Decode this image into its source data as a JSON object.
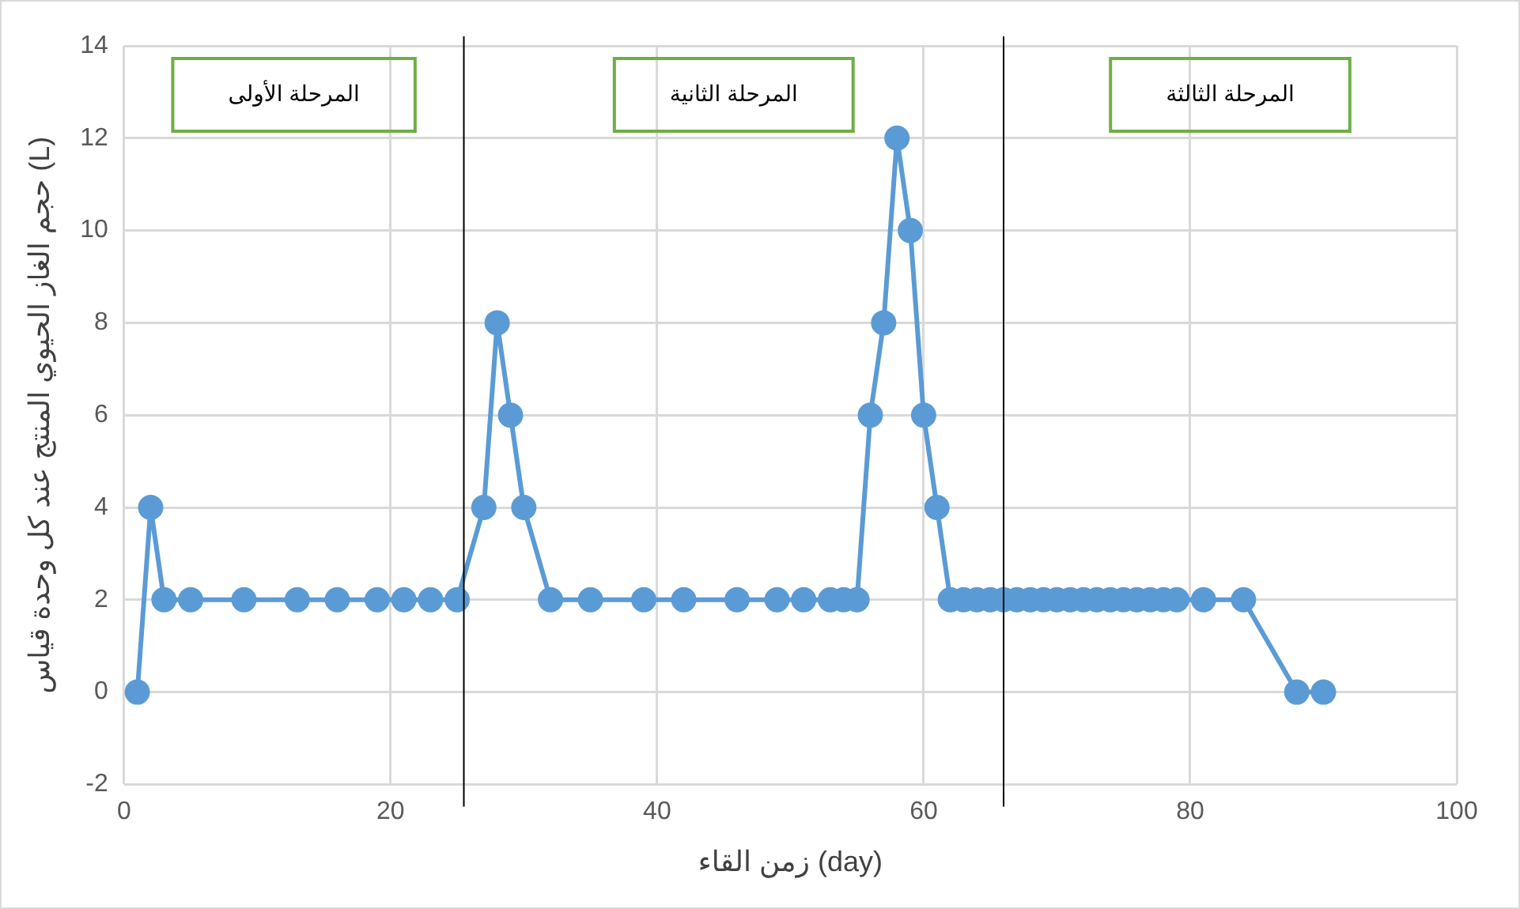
{
  "chart_data": {
    "type": "line",
    "xlabel": "زمن القاء (day)",
    "ylabel": "حجم الغاز الحيوي المنتج عند كل وحدة قياس (L)",
    "x": [
      1,
      2,
      3,
      5,
      9,
      13,
      16,
      19,
      21,
      23,
      25,
      27,
      28,
      29,
      30,
      32,
      35,
      39,
      42,
      46,
      49,
      51,
      53,
      54,
      55,
      56,
      57,
      58,
      59,
      60,
      61,
      62,
      63,
      64,
      65,
      66,
      67,
      68,
      69,
      70,
      71,
      72,
      73,
      74,
      75,
      76,
      77,
      78,
      79,
      81,
      84,
      88,
      90
    ],
    "series": [
      {
        "color": "#5b9bd5",
        "values": [
          0,
          4,
          2,
          2,
          2,
          2,
          2,
          2,
          2,
          2,
          2,
          4,
          8,
          6,
          4,
          2,
          2,
          2,
          2,
          2,
          2,
          2,
          2,
          2,
          2,
          6,
          8,
          12,
          10,
          6,
          4,
          2,
          2,
          2,
          2,
          2,
          2,
          2,
          2,
          2,
          2,
          2,
          2,
          2,
          2,
          2,
          2,
          2,
          2,
          2,
          2,
          0,
          0
        ]
      }
    ],
    "xlim": [
      0,
      100
    ],
    "xticks": [
      0,
      20,
      40,
      60,
      80,
      100
    ],
    "ylim": [
      -2,
      14
    ],
    "yticks": [
      -2,
      0,
      2,
      4,
      6,
      8,
      10,
      12,
      14
    ],
    "grid": true,
    "legend": false,
    "marker": "circle",
    "line_style": "solid",
    "ref_lines": [
      {
        "axis": "x",
        "value": 25.5,
        "color": "#000000"
      },
      {
        "axis": "x",
        "value": 66,
        "color": "#000000"
      }
    ],
    "annotations": [
      "المرحلة الأولى",
      "المرحلة الثانية",
      "المرحلة الثالثة"
    ]
  }
}
